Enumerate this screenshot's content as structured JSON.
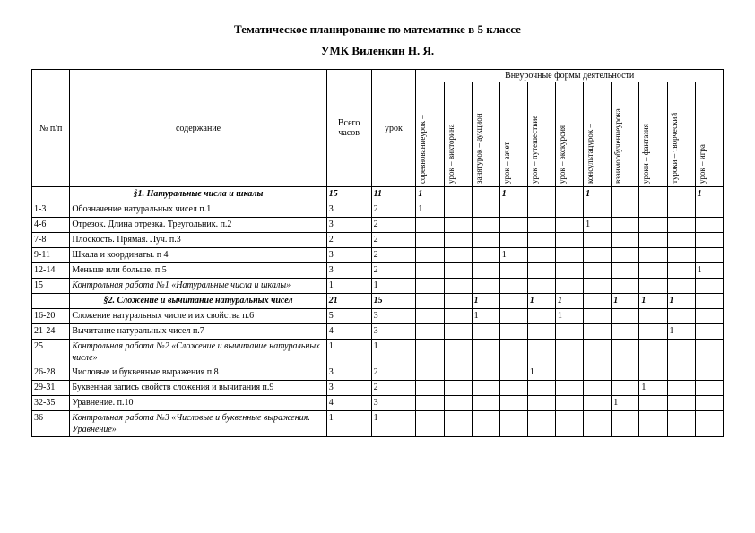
{
  "title": "Тематическое планирование по математике в 5 классе",
  "subtitle": "УМК Виленкин Н. Я.",
  "headers": {
    "num": "№ п/п",
    "content": "содержание",
    "totalHours": "Всего часов",
    "lesson": "урок",
    "forms_group": "Внеурочные формы деятельности",
    "forms": [
      "соревнованиеурок –",
      "урок – викторина",
      "занятурок – аукцион",
      "урок – зачет",
      "урок – путешествие",
      "урок – экскурсия",
      "консультацурок –",
      "взаимообучениеурока",
      "уроки – фантазия",
      "туроки – творческий",
      "урок – игра"
    ]
  },
  "rows": [
    {
      "section": true,
      "content": "§1. Натуральные числа и шкалы",
      "total": "15",
      "lesson": "11",
      "f": [
        "1",
        "",
        "",
        "1",
        "",
        "",
        "1",
        "",
        "",
        "",
        "1"
      ]
    },
    {
      "num": "1-3",
      "content": "Обозначение натуральных чисел п.1",
      "total": "3",
      "lesson": "2",
      "f": [
        "1",
        "",
        "",
        "",
        "",
        "",
        "",
        "",
        "",
        "",
        ""
      ]
    },
    {
      "num": "4-6",
      "content": "Отрезок. Длина отрезка. Треугольник. п.2",
      "total": "3",
      "lesson": "2",
      "f": [
        "",
        "",
        "",
        "",
        "",
        "",
        "1",
        "",
        "",
        "",
        ""
      ]
    },
    {
      "num": "7-8",
      "content": "Плоскость. Прямая. Луч. п.3",
      "total": "2",
      "lesson": "2",
      "f": [
        "",
        "",
        "",
        "",
        "",
        "",
        "",
        "",
        "",
        "",
        ""
      ]
    },
    {
      "num": "9-11",
      "content": "Шкала и координаты. п 4",
      "total": "3",
      "lesson": "2",
      "f": [
        "",
        "",
        "",
        "1",
        "",
        "",
        "",
        "",
        "",
        "",
        ""
      ]
    },
    {
      "num": "12-14",
      "content": "Меньше или больше. п.5",
      "total": "3",
      "lesson": "2",
      "f": [
        "",
        "",
        "",
        "",
        "",
        "",
        "",
        "",
        "",
        "",
        "1"
      ]
    },
    {
      "num": "15",
      "content": "Контрольная работа №1 «Натуральные числа и шкалы»",
      "italic": true,
      "total": "1",
      "lesson": "1",
      "f": [
        "",
        "",
        "",
        "",
        "",
        "",
        "",
        "",
        "",
        "",
        ""
      ]
    },
    {
      "section": true,
      "content": "§2. Сложение и вычитание натуральных чисел",
      "total": "21",
      "lesson": "15",
      "f": [
        "",
        "",
        "1",
        "",
        "1",
        "1",
        "",
        "1",
        "1",
        "1",
        ""
      ]
    },
    {
      "num": "16-20",
      "content": "Сложение натуральных числе и их свойства п.6",
      "total": "5",
      "lesson": "3",
      "f": [
        "",
        "",
        "1",
        "",
        "",
        "1",
        "",
        "",
        "",
        "",
        ""
      ]
    },
    {
      "num": "21-24",
      "content": "Вычитание натуральных чисел п.7",
      "total": "4",
      "lesson": "3",
      "f": [
        "",
        "",
        "",
        "",
        "",
        "",
        "",
        "",
        "",
        "1",
        ""
      ]
    },
    {
      "num": "25",
      "content": "Контрольная работа №2 «Сложение и вычитание натуральных числе»",
      "italic": true,
      "total": "1",
      "lesson": "1",
      "f": [
        "",
        "",
        "",
        "",
        "",
        "",
        "",
        "",
        "",
        "",
        ""
      ]
    },
    {
      "num": "26-28",
      "content": "Числовые и буквенные выражения п.8",
      "total": "3",
      "lesson": "2",
      "f": [
        "",
        "",
        "",
        "",
        "1",
        "",
        "",
        "",
        "",
        "",
        ""
      ]
    },
    {
      "num": "29-31",
      "content": "Буквенная запись свойств сложения и вычитания п.9",
      "total": "3",
      "lesson": "2",
      "f": [
        "",
        "",
        "",
        "",
        "",
        "",
        "",
        "",
        "1",
        "",
        ""
      ]
    },
    {
      "num": "32-35",
      "content": "Уравнение.  п.10",
      "total": "4",
      "lesson": "3",
      "f": [
        "",
        "",
        "",
        "",
        "",
        "",
        "",
        "1",
        "",
        "",
        ""
      ]
    },
    {
      "num": "36",
      "content": "Контрольная работа №3 «Числовые и буквенные выражения. Уравнение»",
      "italic": true,
      "total": "1",
      "lesson": "1",
      "f": [
        "",
        "",
        "",
        "",
        "",
        "",
        "",
        "",
        "",
        "",
        ""
      ]
    }
  ]
}
